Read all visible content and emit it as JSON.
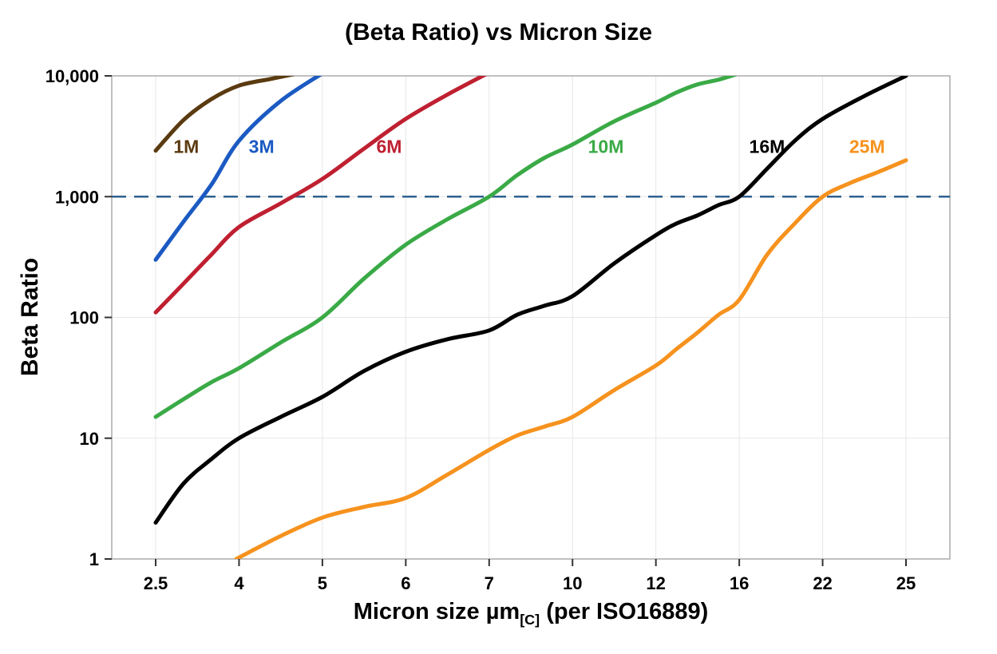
{
  "chart_data": {
    "type": "line",
    "title": "(Beta Ratio) vs Micron Size",
    "ylabel": "Beta Ratio",
    "xlabel": {
      "main": "Micron size µm",
      "sub": "[C]",
      "rest": " (per ISO16889)"
    },
    "y_scale": "log",
    "ylim": [
      1,
      10000
    ],
    "grid": true,
    "x_ticks": [
      2.5,
      4,
      5,
      6,
      7,
      10,
      12,
      16,
      22,
      25
    ],
    "x_tick_labels": [
      "2.5",
      "4",
      "5",
      "6",
      "7",
      "10",
      "12",
      "16",
      "22",
      "25"
    ],
    "y_ticks": [
      1,
      10,
      100,
      1000,
      10000
    ],
    "y_tick_labels": [
      "1",
      "10",
      "100",
      "1,000",
      "10,000"
    ],
    "reference_line": {
      "y": 1000,
      "style": "dashed",
      "color": "#2f618f"
    },
    "series_label_y": 2300,
    "series": [
      {
        "name": "1M",
        "color": "#5a3a10",
        "label_x": 3.05,
        "points": [
          [
            2.5,
            2400
          ],
          [
            3,
            4300
          ],
          [
            3.5,
            6400
          ],
          [
            4,
            8300
          ],
          [
            4.4,
            9500
          ],
          [
            4.85,
            11000
          ]
        ]
      },
      {
        "name": "3M",
        "color": "#1b5ac2",
        "label_x": 4.27,
        "points": [
          [
            2.5,
            300
          ],
          [
            3,
            620
          ],
          [
            3.5,
            1250
          ],
          [
            4,
            2900
          ],
          [
            4.5,
            6200
          ],
          [
            5.05,
            11000
          ]
        ]
      },
      {
        "name": "6M",
        "color": "#bf2031",
        "label_x": 5.8,
        "points": [
          [
            2.5,
            110
          ],
          [
            3,
            190
          ],
          [
            3.5,
            330
          ],
          [
            4,
            560
          ],
          [
            4.5,
            880
          ],
          [
            5,
            1400
          ],
          [
            5.5,
            2500
          ],
          [
            6,
            4400
          ],
          [
            6.5,
            7000
          ],
          [
            7.05,
            10800
          ]
        ]
      },
      {
        "name": "10M",
        "color": "#3aaa46",
        "label_x": 10.8,
        "points": [
          [
            2.5,
            15
          ],
          [
            3,
            21
          ],
          [
            3.5,
            29
          ],
          [
            4,
            38
          ],
          [
            4.5,
            62
          ],
          [
            5,
            100
          ],
          [
            5.5,
            210
          ],
          [
            6,
            400
          ],
          [
            6.5,
            650
          ],
          [
            7,
            1000
          ],
          [
            8,
            1500
          ],
          [
            9,
            2100
          ],
          [
            10,
            2700
          ],
          [
            11,
            4200
          ],
          [
            12,
            6000
          ],
          [
            13,
            7300
          ],
          [
            14,
            8500
          ],
          [
            15,
            9300
          ],
          [
            16,
            10500
          ]
        ]
      },
      {
        "name": "16M",
        "color": "#000000",
        "label_x": 18.0,
        "points": [
          [
            2.5,
            2
          ],
          [
            3,
            4.2
          ],
          [
            3.5,
            6.7
          ],
          [
            4,
            10
          ],
          [
            4.5,
            15
          ],
          [
            5,
            22
          ],
          [
            5.5,
            36
          ],
          [
            6,
            52
          ],
          [
            6.5,
            66
          ],
          [
            7,
            78
          ],
          [
            8,
            105
          ],
          [
            9,
            125
          ],
          [
            10,
            150
          ],
          [
            11,
            280
          ],
          [
            12,
            480
          ],
          [
            13,
            600
          ],
          [
            14,
            700
          ],
          [
            15,
            850
          ],
          [
            16,
            1000
          ],
          [
            18,
            1700
          ],
          [
            20,
            2900
          ],
          [
            22,
            4400
          ],
          [
            23.5,
            6800
          ],
          [
            25,
            10000
          ]
        ]
      },
      {
        "name": "25M",
        "color": "#f6921e",
        "label_x": 23.6,
        "points": [
          [
            3.95,
            1
          ],
          [
            4.5,
            1.55
          ],
          [
            5,
            2.2
          ],
          [
            5.5,
            2.7
          ],
          [
            6,
            3.2
          ],
          [
            6.5,
            5
          ],
          [
            7,
            8
          ],
          [
            8,
            10.5
          ],
          [
            9,
            12.5
          ],
          [
            10,
            15
          ],
          [
            11,
            25
          ],
          [
            12,
            40
          ],
          [
            13,
            55
          ],
          [
            14,
            75
          ],
          [
            15,
            105
          ],
          [
            16,
            140
          ],
          [
            18,
            330
          ],
          [
            20,
            600
          ],
          [
            22,
            1000
          ],
          [
            23,
            1300
          ],
          [
            24,
            1600
          ],
          [
            25,
            2000
          ]
        ]
      }
    ]
  },
  "style": {
    "grid_color": "#e7e7e7",
    "frame_color": "#ababab",
    "tick_color": "#333333",
    "background": "#ffffff"
  }
}
